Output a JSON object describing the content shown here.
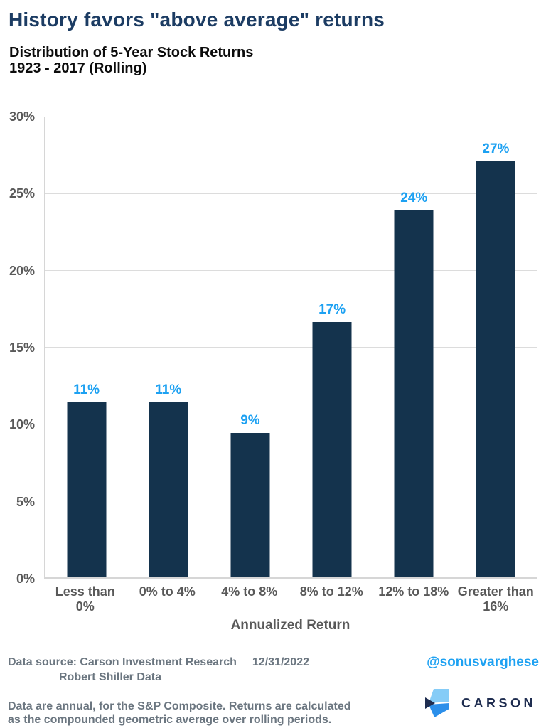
{
  "title": "History favors \"above average\" returns",
  "subtitle": {
    "line1": "Distribution of 5-Year Stock Returns",
    "line2": "1923 - 2017 (Rolling)"
  },
  "chart_data": {
    "type": "bar",
    "title": "Distribution of 5-Year Stock Returns 1923 - 2017 (Rolling)",
    "categories": [
      "Less than 0%",
      "0% to 4%",
      "4% to 8%",
      "8% to 12%",
      "12% to 18%",
      "Greater than 16%"
    ],
    "category_lines": [
      [
        "Less than",
        "0%"
      ],
      [
        "0% to 4%"
      ],
      [
        "4% to 8%"
      ],
      [
        "8% to 12%"
      ],
      [
        "12% to 18%"
      ],
      [
        "Greater than",
        "16%"
      ]
    ],
    "values": [
      11.4,
      11.4,
      9.4,
      16.6,
      23.9,
      27.1
    ],
    "bar_labels": [
      "11%",
      "11%",
      "9%",
      "17%",
      "24%",
      "27%"
    ],
    "xlabel": "Annualized Return",
    "ylabel": "",
    "ylim": [
      0,
      30
    ],
    "yticks": [
      {
        "value": 30,
        "label": "30%"
      },
      {
        "value": 25,
        "label": "25%"
      },
      {
        "value": 20,
        "label": "20%"
      },
      {
        "value": 15,
        "label": "15%"
      },
      {
        "value": 10,
        "label": "10%"
      },
      {
        "value": 5,
        "label": "5%"
      },
      {
        "value": 0,
        "label": "0%"
      }
    ],
    "grid": true,
    "legend": "none",
    "bar_color": "#14334d",
    "value_label_color": "#1da1f2"
  },
  "footer": {
    "source_line1": "Data source: Carson Investment Research",
    "source_date": "12/31/2022",
    "source_line2": "Robert Shiller Data",
    "handle": "@sonusvarghese",
    "note_line1": "Data are annual, for the S&P Composite. Returns are calculated",
    "note_line2": "as the compounded geometric average over rolling periods.",
    "logo_text": "CARSON"
  },
  "colors": {
    "title": "#1c3c63",
    "bar": "#14334d",
    "value_label": "#1da1f2",
    "axis_text": "#595959",
    "gridline": "#dcdcdc",
    "footer_text": "#6b7680",
    "handle": "#1da1f2",
    "logo_navy": "#1f2d50",
    "logo_light_blue": "#85ccf7",
    "logo_mid_blue": "#2b8fea"
  }
}
